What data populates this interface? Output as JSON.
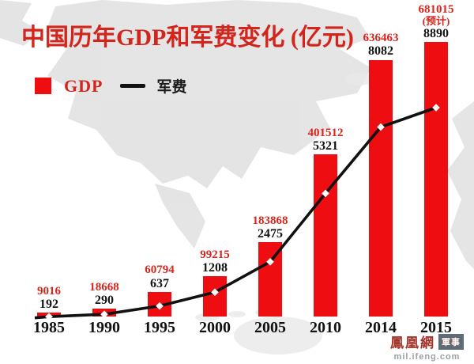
{
  "header": {
    "title": "中国历年GDP和军费变化 (亿元)"
  },
  "legend": {
    "gdp_label": "GDP",
    "mil_label": "军费"
  },
  "chart_data": {
    "type": "bar",
    "subtype": "bar-with-line-overlay",
    "title": "中国历年GDP和军费变化 (亿元)",
    "unit": "亿元",
    "categories": [
      "1985",
      "1990",
      "1995",
      "2000",
      "2005",
      "2010",
      "2014",
      "2015"
    ],
    "series": [
      {
        "name": "GDP",
        "type": "bar",
        "color": "#ee0d10",
        "values": [
          9016,
          18668,
          60794,
          99215,
          183868,
          401512,
          636463,
          681015
        ]
      },
      {
        "name": "军费",
        "type": "line",
        "color": "#111111",
        "marker": "white-diamond",
        "values": [
          192,
          290,
          637,
          1208,
          2475,
          5321,
          8082,
          8890
        ]
      }
    ],
    "notes": {
      "2015": "(预计)"
    },
    "data_labels": "stacked above each bar: GDP value in red, 军费 value in black",
    "axes": {
      "y_axis_visible": false,
      "x_ticks_visible": true,
      "gridlines": false
    },
    "legend_position": "top-left",
    "background": "faded light-gray world map"
  },
  "footer": {
    "brand": "鳳凰網",
    "badge": "軍事",
    "url": "mil.ifeng.com"
  },
  "colors": {
    "bar_red": "#ee0d10",
    "text_red": "#d8251c",
    "title_red": "#d4251d",
    "line_black": "#111111",
    "map_gray": "#dcdcdc"
  }
}
